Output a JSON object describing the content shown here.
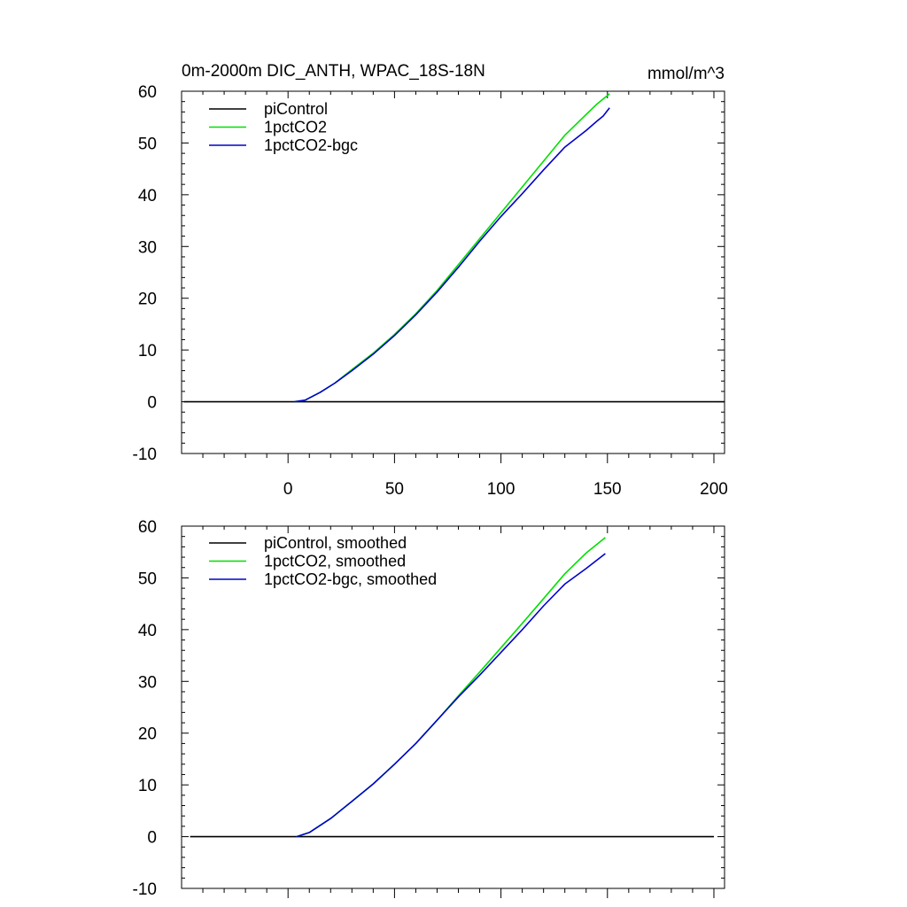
{
  "chart_data": [
    {
      "type": "line",
      "title": "0m-2000m DIC_ANTH, WPAC_18S-18N",
      "units": "mmol/m^3",
      "xlabel": "",
      "ylabel": "",
      "xlim": [
        -50,
        205
      ],
      "ylim": [
        -10,
        60
      ],
      "xticks": [
        0,
        50,
        100,
        150,
        200
      ],
      "xtick_labels": [
        "0",
        "50",
        "100",
        "150",
        "200"
      ],
      "yticks": [
        -10,
        0,
        10,
        20,
        30,
        40,
        50,
        60
      ],
      "ytick_labels": [
        "-10",
        "0",
        "10",
        "20",
        "30",
        "40",
        "50",
        "60"
      ],
      "grid": false,
      "legend_position": "top-left",
      "series": [
        {
          "name": "piControl",
          "color": "#000000",
          "x": [
            -49,
            205
          ],
          "y": [
            0,
            0
          ]
        },
        {
          "name": "1pctCO2",
          "color": "#00e000",
          "x": [
            3,
            8,
            15,
            22,
            30,
            40,
            50,
            60,
            70,
            80,
            90,
            100,
            110,
            120,
            130,
            140,
            145,
            148,
            151
          ],
          "y": [
            0,
            0.3,
            1.8,
            3.6,
            6.2,
            9.4,
            13.0,
            17.0,
            21.5,
            26.5,
            31.5,
            36.5,
            41.5,
            46.5,
            51.5,
            55.5,
            57.5,
            58.5,
            59.5
          ]
        },
        {
          "name": "1pctCO2-bgc",
          "color": "#0000cc",
          "x": [
            3,
            8,
            15,
            22,
            30,
            40,
            50,
            60,
            70,
            80,
            90,
            100,
            110,
            120,
            130,
            140,
            145,
            148,
            151
          ],
          "y": [
            0,
            0.3,
            1.8,
            3.6,
            6.0,
            9.2,
            12.8,
            16.8,
            21.2,
            26.0,
            31.0,
            35.8,
            40.2,
            44.8,
            49.2,
            52.4,
            54.2,
            55.2,
            56.8
          ]
        }
      ]
    },
    {
      "type": "line",
      "title": "",
      "xlabel": "",
      "ylabel": "",
      "xlim": [
        -50,
        205
      ],
      "ylim": [
        -10,
        60
      ],
      "xticks": [
        0,
        50,
        100,
        150,
        200
      ],
      "yticks": [
        -10,
        0,
        10,
        20,
        30,
        40,
        50,
        60
      ],
      "ytick_labels": [
        "-10",
        "0",
        "10",
        "20",
        "30",
        "40",
        "50",
        "60"
      ],
      "grid": false,
      "legend_position": "top-left",
      "series": [
        {
          "name": "piControl, smoothed",
          "color": "#000000",
          "x": [
            -46,
            200
          ],
          "y": [
            0,
            0
          ]
        },
        {
          "name": "1pctCO2, smoothed",
          "color": "#00e000",
          "x": [
            4,
            10,
            20,
            30,
            40,
            50,
            60,
            70,
            80,
            90,
            100,
            110,
            120,
            130,
            140,
            149
          ],
          "y": [
            0,
            0.8,
            3.5,
            6.8,
            10.2,
            14.0,
            18.0,
            22.5,
            27.2,
            31.8,
            36.5,
            41.2,
            46.0,
            50.8,
            54.8,
            57.8
          ]
        },
        {
          "name": "1pctCO2-bgc, smoothed",
          "color": "#0000cc",
          "x": [
            4,
            10,
            20,
            30,
            40,
            50,
            60,
            70,
            80,
            90,
            100,
            110,
            120,
            130,
            140,
            149
          ],
          "y": [
            0,
            0.8,
            3.5,
            6.8,
            10.2,
            14.0,
            18.0,
            22.5,
            27.0,
            31.2,
            35.6,
            40.0,
            44.6,
            48.8,
            51.8,
            54.7
          ]
        }
      ]
    }
  ]
}
